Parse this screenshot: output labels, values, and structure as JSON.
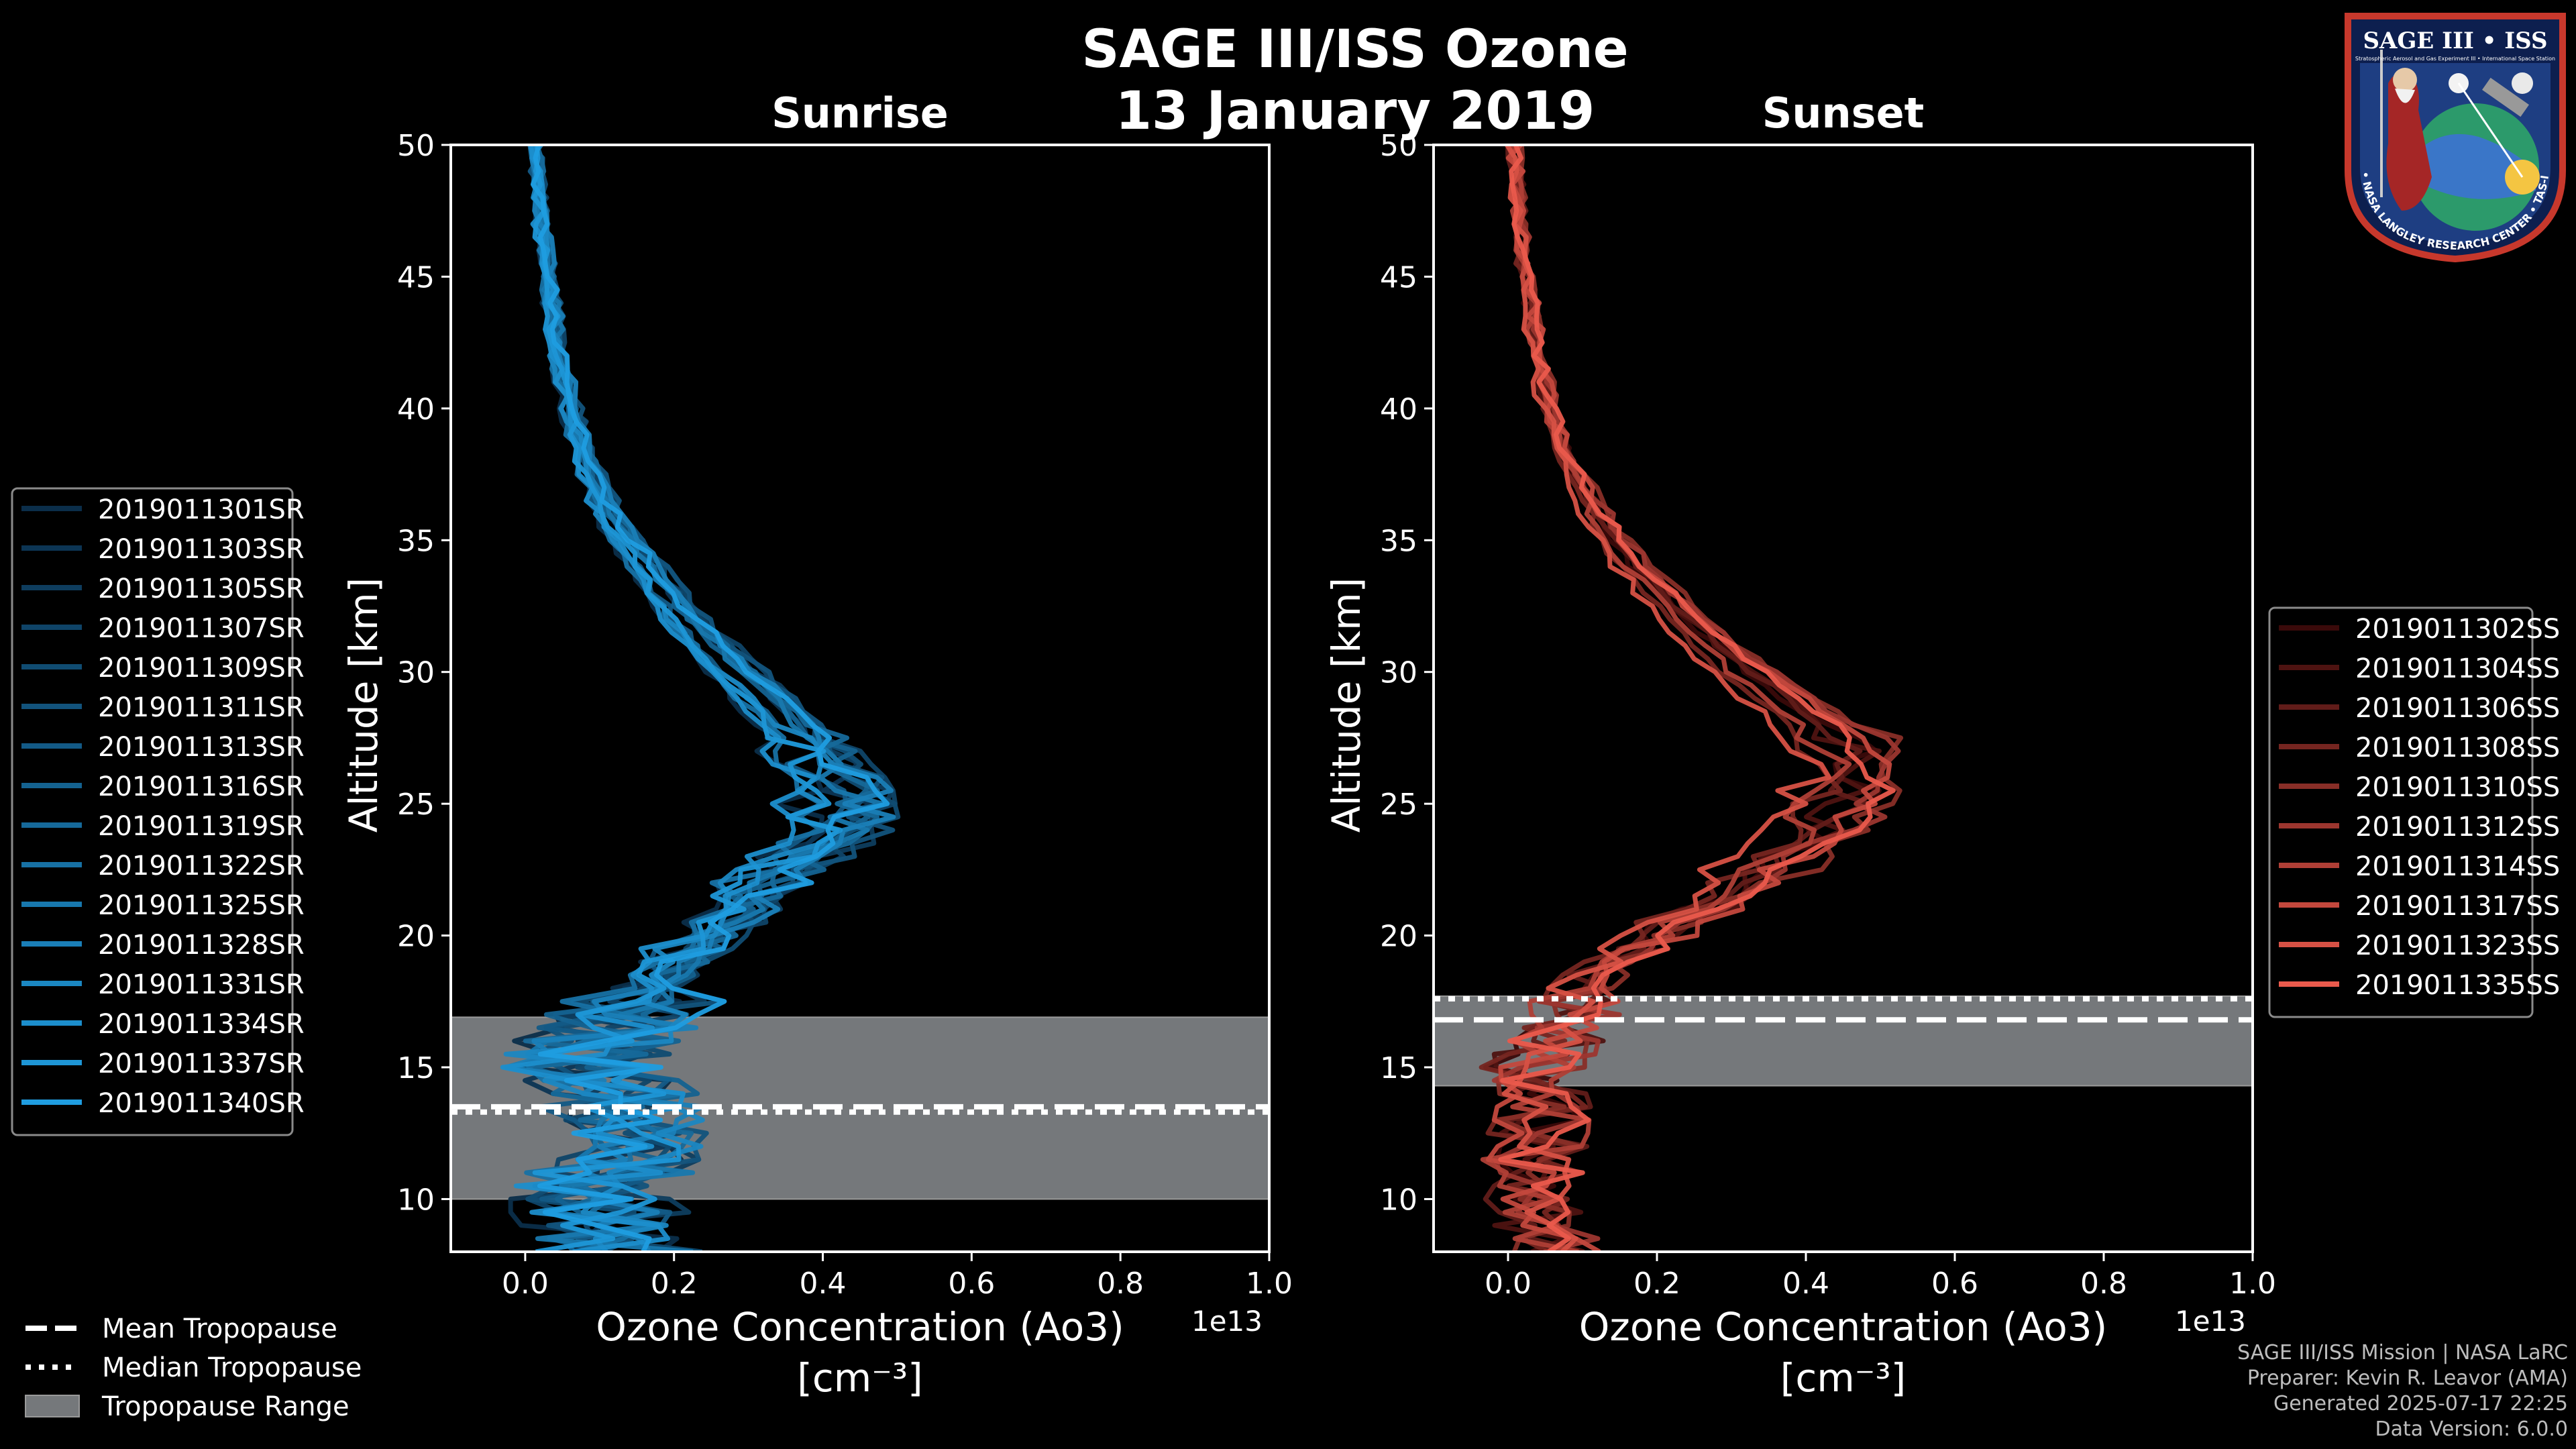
{
  "title_line1": "SAGE III/ISS Ozone",
  "title_line2": "13 January 2019",
  "logo": {
    "name": "SAGE III • ISS",
    "subtitle": "Stratospheric Aerosol and Gas Experiment III • International Space Station",
    "ring": "BALL • NASA LANGLEY RESEARCH CENTER • TAS-I • ESA"
  },
  "credits": {
    "line1": "SAGE III/ISS Mission | NASA LaRC",
    "line2": "Preparer: Kevin R. Leavor (AMA)",
    "line3": "Generated 2025-07-17 22:25",
    "line4": "Data Version: 6.0.0"
  },
  "colors": {
    "background": "#000000",
    "sunrise": "#1f9de0",
    "sunset": "#ea5a4c",
    "tropopause_band": "#75787b"
  },
  "chart_data": [
    {
      "type": "line",
      "title": "Sunrise",
      "xlabel": "Ozone Concentration (Ao3)",
      "xunit": "[cm⁻³]",
      "xscale_label": "1e13",
      "ylabel": "Altitude [km]",
      "xlim": [
        -0.1,
        1.0
      ],
      "ylim": [
        8,
        50
      ],
      "xticks": [
        "0.0",
        "0.2",
        "0.4",
        "0.6",
        "0.8",
        "1.0"
      ],
      "yticks": [
        "10",
        "15",
        "20",
        "25",
        "30",
        "35",
        "40",
        "45",
        "50"
      ],
      "tropopause": {
        "mean": 13.5,
        "median": 13.3,
        "range": [
          10.0,
          16.9
        ]
      },
      "mean_profile": {
        "alt": [
          8.5,
          10,
          12,
          14,
          15,
          16,
          17,
          18,
          19,
          20,
          21,
          22,
          23,
          24,
          25,
          26,
          27,
          28,
          29,
          30,
          32,
          34,
          36,
          38,
          40,
          42,
          44,
          46,
          48,
          50
        ],
        "o3": [
          0.12,
          0.09,
          0.15,
          0.13,
          0.07,
          0.1,
          0.13,
          0.16,
          0.2,
          0.24,
          0.28,
          0.32,
          0.37,
          0.41,
          0.42,
          0.41,
          0.39,
          0.35,
          0.32,
          0.28,
          0.21,
          0.16,
          0.11,
          0.08,
          0.06,
          0.045,
          0.035,
          0.025,
          0.018,
          0.012
        ]
      },
      "series": [
        {
          "name": "2019011301SR"
        },
        {
          "name": "2019011303SR"
        },
        {
          "name": "2019011305SR"
        },
        {
          "name": "2019011307SR"
        },
        {
          "name": "2019011309SR"
        },
        {
          "name": "2019011311SR"
        },
        {
          "name": "2019011313SR"
        },
        {
          "name": "2019011316SR"
        },
        {
          "name": "2019011319SR"
        },
        {
          "name": "2019011322SR"
        },
        {
          "name": "2019011325SR"
        },
        {
          "name": "2019011328SR"
        },
        {
          "name": "2019011331SR"
        },
        {
          "name": "2019011334SR"
        },
        {
          "name": "2019011337SR"
        },
        {
          "name": "2019011340SR"
        }
      ]
    },
    {
      "type": "line",
      "title": "Sunset",
      "xlabel": "Ozone Concentration (Ao3)",
      "xunit": "[cm⁻³]",
      "xscale_label": "1e13",
      "ylabel": "Altitude [km]",
      "xlim": [
        -0.1,
        1.0
      ],
      "ylim": [
        8,
        50
      ],
      "xticks": [
        "0.0",
        "0.2",
        "0.4",
        "0.6",
        "0.8",
        "1.0"
      ],
      "yticks": [
        "10",
        "15",
        "20",
        "25",
        "30",
        "35",
        "40",
        "45",
        "50"
      ],
      "tropopause": {
        "mean": 16.8,
        "median": 17.6,
        "range": [
          14.3,
          17.7
        ]
      },
      "mean_profile": {
        "alt": [
          8.5,
          10,
          12,
          14,
          15,
          16,
          17,
          18,
          19,
          20,
          21,
          22,
          23,
          24,
          25,
          26,
          27,
          28,
          29,
          30,
          32,
          34,
          36,
          38,
          40,
          42,
          44,
          46,
          48,
          50
        ],
        "o3": [
          0.05,
          0.02,
          0.04,
          0.05,
          0.03,
          0.06,
          0.08,
          0.1,
          0.14,
          0.2,
          0.26,
          0.32,
          0.37,
          0.42,
          0.45,
          0.47,
          0.46,
          0.42,
          0.37,
          0.32,
          0.24,
          0.17,
          0.12,
          0.08,
          0.055,
          0.04,
          0.03,
          0.02,
          0.013,
          0.008
        ]
      },
      "series": [
        {
          "name": "2019011302SS"
        },
        {
          "name": "2019011304SS"
        },
        {
          "name": "2019011306SS"
        },
        {
          "name": "2019011308SS"
        },
        {
          "name": "2019011310SS"
        },
        {
          "name": "2019011312SS"
        },
        {
          "name": "2019011314SS"
        },
        {
          "name": "2019011317SS"
        },
        {
          "name": "2019011323SS"
        },
        {
          "name": "2019011335SS"
        }
      ]
    }
  ],
  "tropopause_legend": [
    "Mean Tropopause",
    "Median Tropopause",
    "Tropopause Range"
  ]
}
